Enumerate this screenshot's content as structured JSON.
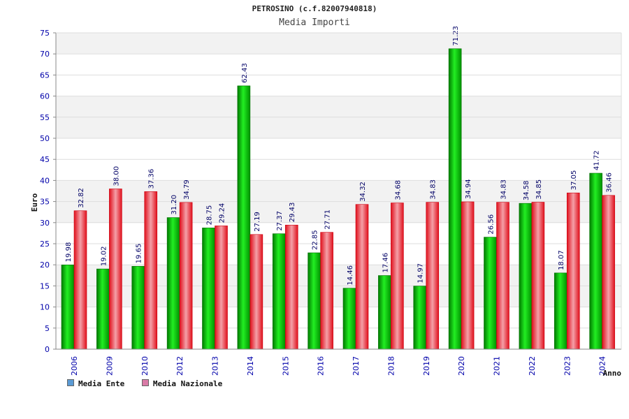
{
  "chart_data": {
    "type": "bar",
    "title": "PETROSINO (c.f.82007940818)",
    "subtitle": "Media Importi",
    "xlabel": "Anno",
    "ylabel": "Euro",
    "ylim": [
      0,
      75
    ],
    "yticks": [
      0,
      5,
      10,
      15,
      20,
      25,
      30,
      35,
      40,
      45,
      50,
      55,
      60,
      65,
      70,
      75
    ],
    "categories": [
      "2006",
      "2009",
      "2010",
      "2012",
      "2013",
      "2014",
      "2015",
      "2016",
      "2017",
      "2018",
      "2019",
      "2020",
      "2021",
      "2022",
      "2023",
      "2024"
    ],
    "series": [
      {
        "name": "Media Ente",
        "color": "#00c000",
        "legend_color": "#5b9bd5",
        "values": [
          19.98,
          19.02,
          19.65,
          31.2,
          28.75,
          62.43,
          27.37,
          22.85,
          14.46,
          17.46,
          14.97,
          71.23,
          26.56,
          34.58,
          18.07,
          41.72
        ],
        "labels": [
          "19.98",
          "19.02",
          "19.65",
          "31.20",
          "28.75",
          "62.43",
          "27.37",
          "22.85",
          "14.46",
          "17.46",
          "14.97",
          "71.23",
          "26.56",
          "34.58",
          "18.07",
          "41.72"
        ]
      },
      {
        "name": "Media Nazionale",
        "color": "#e8202a",
        "legend_color": "#d97aa6",
        "values": [
          32.82,
          38.0,
          37.36,
          34.79,
          29.24,
          27.19,
          29.43,
          27.71,
          34.32,
          34.68,
          34.83,
          34.94,
          34.83,
          34.85,
          37.05,
          36.46
        ],
        "labels": [
          "32.82",
          "38.00",
          "37.36",
          "34.79",
          "29.24",
          "27.19",
          "29.43",
          "27.71",
          "34.32",
          "34.68",
          "34.83",
          "34.94",
          "34.83",
          "34.85",
          "37.05",
          "36.46"
        ]
      }
    ],
    "grid": true,
    "legend_position": "bottom-left"
  }
}
